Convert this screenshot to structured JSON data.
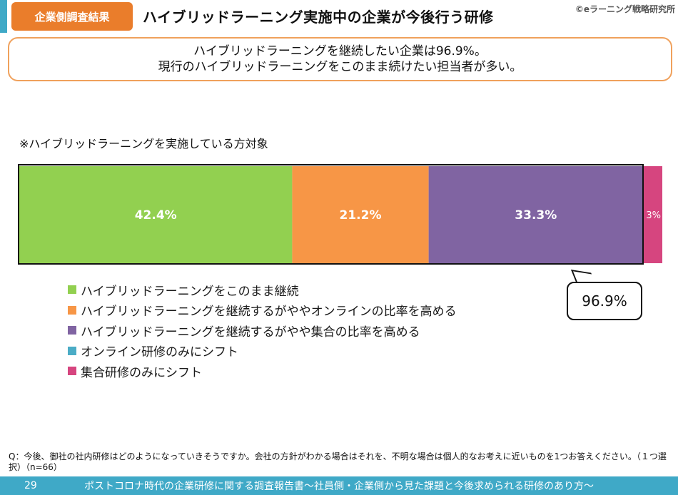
{
  "header": {
    "badge": "企業側調査結果",
    "title": "ハイブリッドラーニング実施中の企業が今後行う研修",
    "copyright": "©eラーニング戦略研究所"
  },
  "summary": {
    "line1": "ハイブリッドラーニングを継続したい企業は96.9%。",
    "line2": "現行のハイブリッドラーニングをこのまま続けたい担当者が多い。"
  },
  "note": "※ハイブリッドラーニングを実施している方対象",
  "callout": "96.9%",
  "question": "Q：今後、御社の社内研修はどのようになっていきそうですか。会社の方針がわかる場合はそれを、不明な場合は個人的なお考えに近いものを1つお答えください。（１つ選択）（n=66）",
  "footer": {
    "page": "29",
    "title": "ポストコロナ時代の企業研修に関する調査報告書～社員側・企業側から見た課題と今後求められる研修のあり方～"
  },
  "colors": {
    "accent": "#3fa9c7",
    "badge": "#ea7d2b"
  },
  "chart_data": {
    "type": "bar",
    "orientation": "horizontal-stacked-100",
    "unit": "%",
    "categories": [
      "ハイブリッドラーニングをこのまま継続",
      "ハイブリッドラーニングを継続するがややオンラインの比率を高める",
      "ハイブリッドラーニングを継続するがやや集合の比率を高める",
      "オンライン研修のみにシフト",
      "集合研修のみにシフト"
    ],
    "values": [
      42.4,
      21.2,
      33.3,
      0.0,
      3.0
    ],
    "data_labels": [
      "42.4%",
      "21.2%",
      "33.3%",
      "",
      "3%"
    ],
    "colors": [
      "#92d050",
      "#f79646",
      "#8064a2",
      "#4bacc6",
      "#d6457f"
    ],
    "legend_position": "bottom-left"
  }
}
